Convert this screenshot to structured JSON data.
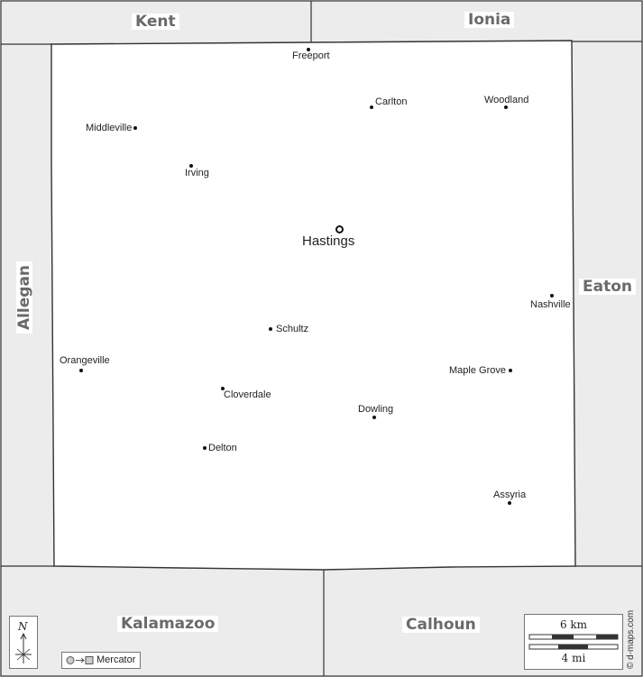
{
  "map": {
    "main_county_fill": "#ffffff",
    "neighbor_fill": "#ececec",
    "border_color": "#333333"
  },
  "neighbors": {
    "north_west": "Kent",
    "north_east": "Ionia",
    "west": "Allegan",
    "east": "Eaton",
    "south_west": "Kalamazoo",
    "south_east": "Calhoun"
  },
  "county_seat": "Hastings",
  "towns": {
    "freeport": "Freeport",
    "carlton": "Carlton",
    "woodland": "Woodland",
    "middleville": "Middleville",
    "irving": "Irving",
    "nashville": "Nashville",
    "schultz": "Schultz",
    "orangeville": "Orangeville",
    "maple_grove": "Maple Grove",
    "cloverdale": "Cloverdale",
    "dowling": "Dowling",
    "delton": "Delton",
    "assyria": "Assyria"
  },
  "compass": {
    "north_label": "N"
  },
  "projection": {
    "name": "Mercator"
  },
  "scale": {
    "km_label": "6 km",
    "mi_label": "4 mi"
  },
  "credit": "© d-maps.com"
}
